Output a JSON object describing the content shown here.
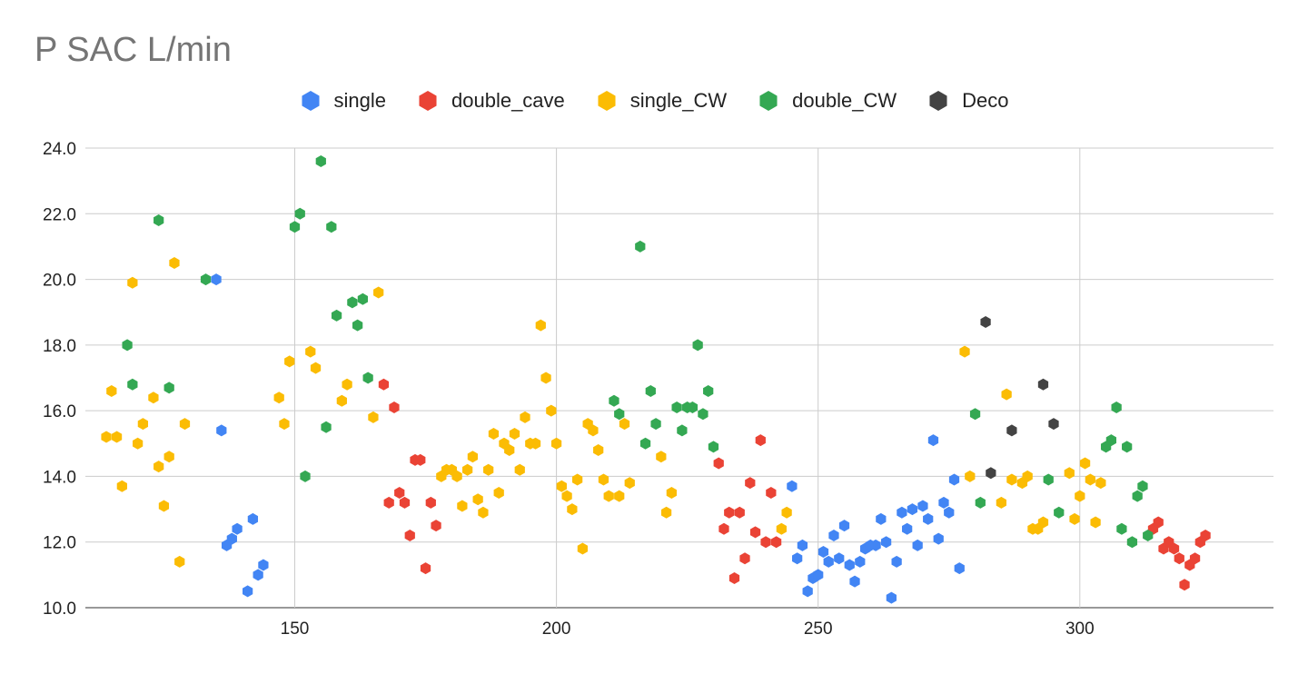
{
  "chart_data": {
    "type": "scatter",
    "title": "P SAC L/min",
    "xlabel": "",
    "ylabel": "",
    "xlim": [
      110,
      337
    ],
    "ylim": [
      10,
      24
    ],
    "x_ticks": [
      "150",
      "200",
      "250",
      "300"
    ],
    "y_ticks": [
      "10.0",
      "12.0",
      "14.0",
      "16.0",
      "18.0",
      "20.0",
      "22.0",
      "24.0"
    ],
    "grid": true,
    "legend_position": "top",
    "marker": "hexagon",
    "series": [
      {
        "name": "single",
        "color": "#4285F4",
        "points": [
          [
            135,
            20.0
          ],
          [
            136,
            15.4
          ],
          [
            137,
            11.9
          ],
          [
            138,
            12.1
          ],
          [
            139,
            12.4
          ],
          [
            141,
            10.5
          ],
          [
            142,
            12.7
          ],
          [
            143,
            11.0
          ],
          [
            144,
            11.3
          ],
          [
            245,
            13.7
          ],
          [
            246,
            11.5
          ],
          [
            247,
            11.9
          ],
          [
            248,
            10.5
          ],
          [
            249,
            10.9
          ],
          [
            250,
            11.0
          ],
          [
            251,
            11.7
          ],
          [
            252,
            11.4
          ],
          [
            253,
            12.2
          ],
          [
            254,
            11.5
          ],
          [
            255,
            12.5
          ],
          [
            256,
            11.3
          ],
          [
            257,
            10.8
          ],
          [
            258,
            11.4
          ],
          [
            259,
            11.8
          ],
          [
            260,
            11.9
          ],
          [
            261,
            11.9
          ],
          [
            262,
            12.7
          ],
          [
            263,
            12.0
          ],
          [
            264,
            10.3
          ],
          [
            265,
            11.4
          ],
          [
            266,
            12.9
          ],
          [
            267,
            12.4
          ],
          [
            268,
            13.0
          ],
          [
            269,
            11.9
          ],
          [
            270,
            13.1
          ],
          [
            271,
            12.7
          ],
          [
            272,
            15.1
          ],
          [
            273,
            12.1
          ],
          [
            274,
            13.2
          ],
          [
            275,
            12.9
          ],
          [
            276,
            13.9
          ],
          [
            277,
            11.2
          ]
        ]
      },
      {
        "name": "double_cave",
        "color": "#EA4335",
        "points": [
          [
            167,
            16.8
          ],
          [
            168,
            13.2
          ],
          [
            169,
            16.1
          ],
          [
            170,
            13.5
          ],
          [
            171,
            13.2
          ],
          [
            172,
            12.2
          ],
          [
            173,
            14.5
          ],
          [
            174,
            14.5
          ],
          [
            175,
            11.2
          ],
          [
            176,
            13.2
          ],
          [
            177,
            12.5
          ],
          [
            231,
            14.4
          ],
          [
            232,
            12.4
          ],
          [
            233,
            12.9
          ],
          [
            234,
            10.9
          ],
          [
            235,
            12.9
          ],
          [
            236,
            11.5
          ],
          [
            237,
            13.8
          ],
          [
            238,
            12.3
          ],
          [
            239,
            15.1
          ],
          [
            240,
            12.0
          ],
          [
            241,
            13.5
          ],
          [
            242,
            12.0
          ],
          [
            314,
            12.4
          ],
          [
            315,
            12.6
          ],
          [
            316,
            11.8
          ],
          [
            317,
            12.0
          ],
          [
            318,
            11.8
          ],
          [
            319,
            11.5
          ],
          [
            320,
            10.7
          ],
          [
            321,
            11.3
          ],
          [
            322,
            11.5
          ],
          [
            323,
            12.0
          ],
          [
            324,
            12.2
          ]
        ]
      },
      {
        "name": "single_CW",
        "color": "#FBBC04",
        "points": [
          [
            114,
            15.2
          ],
          [
            115,
            16.6
          ],
          [
            116,
            15.2
          ],
          [
            117,
            13.7
          ],
          [
            119,
            19.9
          ],
          [
            120,
            15.0
          ],
          [
            121,
            15.6
          ],
          [
            123,
            16.4
          ],
          [
            124,
            14.3
          ],
          [
            125,
            13.1
          ],
          [
            126,
            14.6
          ],
          [
            127,
            20.5
          ],
          [
            128,
            11.4
          ],
          [
            129,
            15.6
          ],
          [
            147,
            16.4
          ],
          [
            148,
            15.6
          ],
          [
            149,
            17.5
          ],
          [
            153,
            17.8
          ],
          [
            154,
            17.3
          ],
          [
            159,
            16.3
          ],
          [
            160,
            16.8
          ],
          [
            165,
            15.8
          ],
          [
            166,
            19.6
          ],
          [
            178,
            14.0
          ],
          [
            179,
            14.2
          ],
          [
            180,
            14.2
          ],
          [
            181,
            14.0
          ],
          [
            182,
            13.1
          ],
          [
            183,
            14.2
          ],
          [
            184,
            14.6
          ],
          [
            185,
            13.3
          ],
          [
            186,
            12.9
          ],
          [
            187,
            14.2
          ],
          [
            188,
            15.3
          ],
          [
            189,
            13.5
          ],
          [
            190,
            15.0
          ],
          [
            191,
            14.8
          ],
          [
            192,
            15.3
          ],
          [
            193,
            14.2
          ],
          [
            194,
            15.8
          ],
          [
            195,
            15.0
          ],
          [
            196,
            15.0
          ],
          [
            197,
            18.6
          ],
          [
            198,
            17.0
          ],
          [
            199,
            16.0
          ],
          [
            200,
            15.0
          ],
          [
            201,
            13.7
          ],
          [
            202,
            13.4
          ],
          [
            203,
            13.0
          ],
          [
            204,
            13.9
          ],
          [
            205,
            11.8
          ],
          [
            206,
            15.6
          ],
          [
            207,
            15.4
          ],
          [
            208,
            14.8
          ],
          [
            209,
            13.9
          ],
          [
            210,
            13.4
          ],
          [
            212,
            13.4
          ],
          [
            213,
            15.6
          ],
          [
            214,
            13.8
          ],
          [
            220,
            14.6
          ],
          [
            221,
            12.9
          ],
          [
            222,
            13.5
          ],
          [
            243,
            12.4
          ],
          [
            244,
            12.9
          ],
          [
            278,
            17.8
          ],
          [
            279,
            14.0
          ],
          [
            285,
            13.2
          ],
          [
            286,
            16.5
          ],
          [
            287,
            13.9
          ],
          [
            289,
            13.8
          ],
          [
            290,
            14.0
          ],
          [
            291,
            12.4
          ],
          [
            292,
            12.4
          ],
          [
            293,
            12.6
          ],
          [
            298,
            14.1
          ],
          [
            299,
            12.7
          ],
          [
            300,
            13.4
          ],
          [
            301,
            14.4
          ],
          [
            302,
            13.9
          ],
          [
            303,
            12.6
          ],
          [
            304,
            13.8
          ]
        ]
      },
      {
        "name": "double_CW",
        "color": "#34A853",
        "points": [
          [
            118,
            18.0
          ],
          [
            119,
            16.8
          ],
          [
            124,
            21.8
          ],
          [
            126,
            16.7
          ],
          [
            133,
            20.0
          ],
          [
            150,
            21.6
          ],
          [
            151,
            22.0
          ],
          [
            152,
            14.0
          ],
          [
            155,
            23.6
          ],
          [
            156,
            15.5
          ],
          [
            157,
            21.6
          ],
          [
            158,
            18.9
          ],
          [
            161,
            19.3
          ],
          [
            162,
            18.6
          ],
          [
            163,
            19.4
          ],
          [
            164,
            17.0
          ],
          [
            211,
            16.3
          ],
          [
            212,
            15.9
          ],
          [
            216,
            21.0
          ],
          [
            217,
            15.0
          ],
          [
            218,
            16.6
          ],
          [
            219,
            15.6
          ],
          [
            223,
            16.1
          ],
          [
            224,
            15.4
          ],
          [
            225,
            16.1
          ],
          [
            226,
            16.1
          ],
          [
            227,
            18.0
          ],
          [
            228,
            15.9
          ],
          [
            229,
            16.6
          ],
          [
            230,
            14.9
          ],
          [
            280,
            15.9
          ],
          [
            281,
            13.2
          ],
          [
            294,
            13.9
          ],
          [
            296,
            12.9
          ],
          [
            305,
            14.9
          ],
          [
            306,
            15.1
          ],
          [
            307,
            16.1
          ],
          [
            308,
            12.4
          ],
          [
            309,
            14.9
          ],
          [
            310,
            12.0
          ],
          [
            311,
            13.4
          ],
          [
            312,
            13.7
          ],
          [
            313,
            12.2
          ]
        ]
      },
      {
        "name": "Deco",
        "color": "#434343",
        "points": [
          [
            282,
            18.7
          ],
          [
            283,
            14.1
          ],
          [
            287,
            15.4
          ],
          [
            293,
            16.8
          ],
          [
            295,
            15.6
          ]
        ]
      }
    ]
  }
}
